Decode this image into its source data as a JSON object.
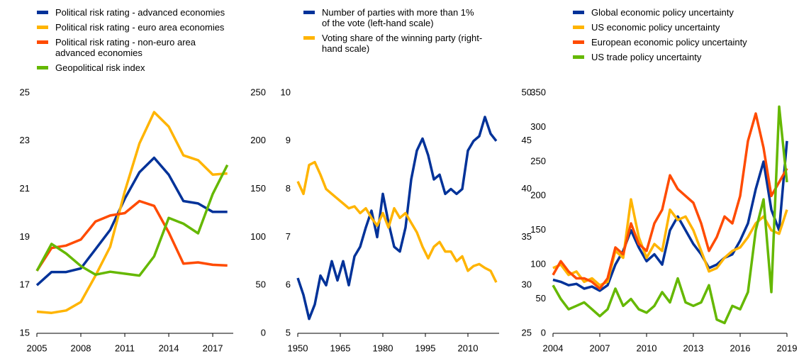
{
  "chart_data": [
    {
      "type": "line",
      "x": [
        2005,
        2006,
        2007,
        2008,
        2009,
        2010,
        2011,
        2012,
        2013,
        2014,
        2015,
        2016,
        2017,
        2018
      ],
      "xlim": [
        2005,
        2018.4
      ],
      "xticks": [
        2005,
        2008,
        2011,
        2014,
        2017
      ],
      "ylim": [
        15,
        25
      ],
      "yticks": [
        15,
        17,
        19,
        21,
        23,
        25
      ],
      "y2lim": [
        0,
        250
      ],
      "y2ticks": [
        0,
        50,
        100,
        150,
        200,
        250
      ],
      "series": [
        {
          "name": "Political risk rating - advanced economies",
          "color": "#003299",
          "values": [
            17.0,
            17.55,
            17.55,
            17.7,
            18.5,
            19.3,
            20.6,
            21.7,
            22.3,
            21.6,
            20.5,
            20.4,
            20.05,
            20.05
          ]
        },
        {
          "name": "Political risk rating - euro area economies",
          "color": "#ffb400",
          "values": [
            15.9,
            15.85,
            15.95,
            16.3,
            17.4,
            18.6,
            20.9,
            22.9,
            24.2,
            23.6,
            22.4,
            22.2,
            21.6,
            21.65
          ]
        },
        {
          "name": "Political risk rating - non-euro area advanced economies",
          "color": "#ff4b00",
          "values": [
            17.6,
            18.55,
            18.65,
            18.9,
            19.65,
            19.9,
            20.0,
            20.5,
            20.3,
            19.2,
            17.9,
            17.95,
            17.85,
            17.82
          ]
        },
        {
          "name": "Geopolitical risk index",
          "color": "#65b800",
          "axis": "y2",
          "values": [
            65,
            93,
            83,
            70,
            61,
            64,
            62,
            60,
            80,
            120,
            114,
            104,
            145,
            175
          ]
        }
      ]
    },
    {
      "type": "line",
      "x": [
        1950,
        1952,
        1954,
        1956,
        1958,
        1960,
        1962,
        1964,
        1966,
        1968,
        1970,
        1972,
        1974,
        1976,
        1978,
        1980,
        1982,
        1984,
        1986,
        1988,
        1990,
        1992,
        1994,
        1996,
        1998,
        2000,
        2002,
        2004,
        2006,
        2008,
        2010,
        2012,
        2014,
        2016,
        2018,
        2020
      ],
      "xlim": [
        1950,
        2021
      ],
      "xticks": [
        1950,
        1965,
        1980,
        1995,
        2010
      ],
      "ylim": [
        5,
        10
      ],
      "yticks": [
        5,
        6,
        7,
        8,
        9,
        10
      ],
      "y2lim": [
        25,
        50
      ],
      "y2ticks": [
        25,
        30,
        35,
        40,
        45,
        50
      ],
      "series": [
        {
          "name": "Number of parties with more than 1% of the vote (left-hand scale)",
          "color": "#003299",
          "values": [
            6.15,
            5.8,
            5.3,
            5.6,
            6.2,
            6.0,
            6.5,
            6.1,
            6.5,
            6.0,
            6.6,
            6.8,
            7.2,
            7.55,
            7.0,
            7.9,
            7.3,
            6.8,
            6.7,
            7.2,
            8.2,
            8.8,
            9.05,
            8.7,
            8.2,
            8.3,
            7.9,
            8.0,
            7.9,
            8.0,
            8.8,
            9.0,
            9.1,
            9.5,
            9.15,
            9.0
          ]
        },
        {
          "name": "Voting share of the winning party (right-hand scale)",
          "color": "#ffb400",
          "axis": "y2",
          "values": [
            40.8,
            39.5,
            42.5,
            42.8,
            41.5,
            40.0,
            39.5,
            39.0,
            38.5,
            38.0,
            38.2,
            37.5,
            38.0,
            37.0,
            36.2,
            37.5,
            36.0,
            38.0,
            37.0,
            37.5,
            36.5,
            35.5,
            34.0,
            32.8,
            34.0,
            34.5,
            33.5,
            33.5,
            32.5,
            33.0,
            31.5,
            32.0,
            32.2,
            31.8,
            31.5,
            30.3
          ]
        }
      ]
    },
    {
      "type": "line",
      "x": [
        2004,
        2004.5,
        2005,
        2005.5,
        2006,
        2006.5,
        2007,
        2007.5,
        2008,
        2008.5,
        2009,
        2009.5,
        2010,
        2010.5,
        2011,
        2011.5,
        2012,
        2012.5,
        2013,
        2013.5,
        2014,
        2014.5,
        2015,
        2015.5,
        2016,
        2016.5,
        2017,
        2017.5,
        2018,
        2018.5,
        2019
      ],
      "xlim": [
        2004,
        2019
      ],
      "xticks": [
        2004,
        2007,
        2010,
        2013,
        2016,
        2019
      ],
      "ylim": [
        0,
        350
      ],
      "yticks": [
        0,
        50,
        100,
        150,
        200,
        250,
        300,
        350
      ],
      "series": [
        {
          "name": "Global economic policy uncertainty",
          "color": "#003299",
          "values": [
            78,
            75,
            70,
            72,
            65,
            68,
            62,
            70,
            100,
            120,
            150,
            125,
            105,
            115,
            100,
            150,
            170,
            150,
            130,
            115,
            95,
            100,
            110,
            115,
            135,
            160,
            210,
            250,
            180,
            150,
            280
          ]
        },
        {
          "name": "US economic policy uncertainty",
          "color": "#ffb400",
          "values": [
            95,
            100,
            85,
            90,
            75,
            80,
            70,
            75,
            120,
            110,
            195,
            140,
            110,
            130,
            120,
            180,
            165,
            170,
            150,
            120,
            90,
            95,
            110,
            120,
            125,
            140,
            160,
            170,
            150,
            145,
            180
          ]
        },
        {
          "name": "European economic policy uncertainty",
          "color": "#ff4b00",
          "values": [
            85,
            105,
            90,
            80,
            80,
            75,
            65,
            80,
            125,
            115,
            160,
            130,
            120,
            160,
            180,
            230,
            210,
            200,
            190,
            160,
            120,
            140,
            170,
            160,
            200,
            280,
            320,
            270,
            200,
            220,
            240
          ]
        },
        {
          "name": "US trade policy uncertainty",
          "color": "#65b800",
          "values": [
            70,
            50,
            35,
            40,
            45,
            35,
            25,
            35,
            65,
            40,
            50,
            35,
            30,
            40,
            60,
            45,
            80,
            45,
            40,
            45,
            70,
            20,
            15,
            40,
            35,
            60,
            150,
            195,
            60,
            330,
            220
          ]
        }
      ]
    }
  ]
}
